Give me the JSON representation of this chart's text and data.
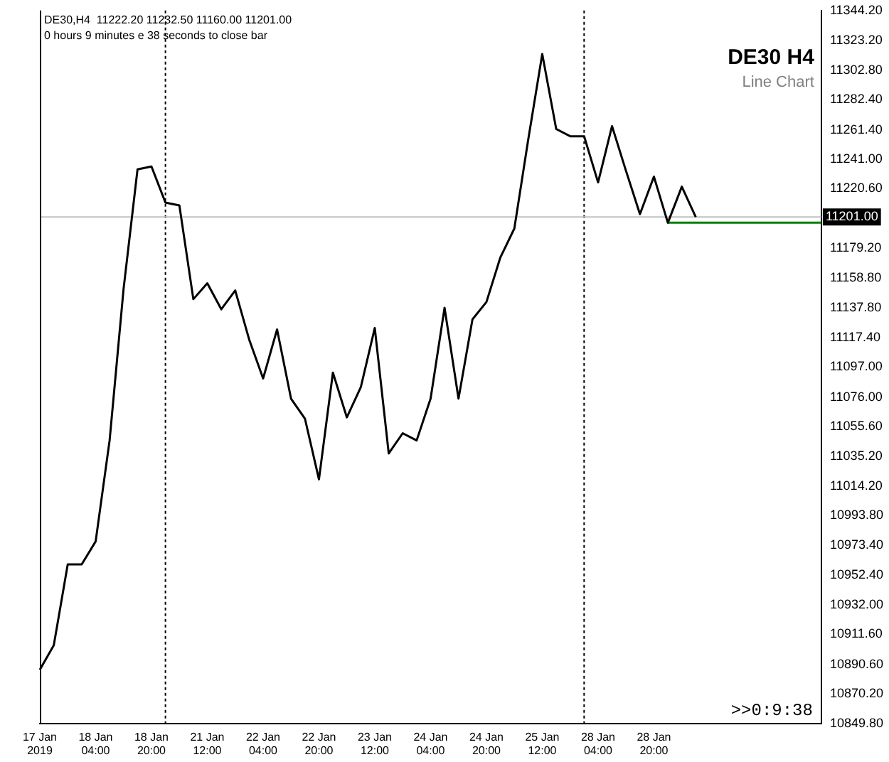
{
  "chart_data": {
    "type": "line",
    "title": "DE30 H4",
    "subtitle": "Line Chart",
    "annotations": [
      "DE30,H4  11222.20 11232.50 11160.00 11201.00",
      "0 hours 9 minutes e 38 seconds to close bar",
      ">>0:9:38"
    ],
    "categories": [
      "17 Jan 2019",
      null,
      null,
      null,
      "18 Jan 04:00",
      null,
      null,
      null,
      "18 Jan 20:00",
      null,
      null,
      null,
      "21 Jan 12:00",
      null,
      null,
      null,
      "22 Jan 04:00",
      null,
      null,
      null,
      "22 Jan 20:00",
      null,
      null,
      null,
      "23 Jan 12:00",
      null,
      null,
      null,
      "24 Jan 04:00",
      null,
      null,
      null,
      "24 Jan 20:00",
      null,
      null,
      null,
      "25 Jan 12:00",
      null,
      null,
      null,
      "28 Jan 04:00",
      null,
      null,
      null,
      "28 Jan 20:00",
      null,
      null,
      null,
      null,
      null,
      null,
      null,
      null,
      null,
      null,
      null,
      null
    ],
    "series": [
      {
        "color": "#000000",
        "values": [
          10887,
          10904,
          10960,
          10960,
          10976,
          11046,
          11151,
          11234,
          11236,
          11211,
          11209,
          11144,
          11155,
          11137,
          11150,
          11116,
          11089,
          11123,
          11075,
          11061,
          11019,
          11093,
          11062,
          11083,
          11124,
          11037,
          11051,
          11046,
          11075,
          11138,
          11075,
          11130,
          11142,
          11173,
          11193,
          11255,
          11314,
          11262,
          11257,
          11257,
          11225,
          11264,
          11233,
          11203,
          11229,
          11197,
          11222,
          11201,
          null,
          null,
          null,
          null,
          null,
          null,
          null,
          null,
          null
        ]
      },
      {
        "type": "line",
        "color": "#008000",
        "values": [
          null,
          null,
          null,
          null,
          null,
          null,
          null,
          null,
          null,
          null,
          null,
          null,
          null,
          null,
          null,
          null,
          null,
          null,
          null,
          null,
          null,
          null,
          null,
          null,
          null,
          null,
          null,
          null,
          null,
          null,
          null,
          null,
          null,
          null,
          null,
          null,
          null,
          null,
          null,
          null,
          null,
          null,
          null,
          null,
          null,
          11197,
          11197,
          11197,
          11197,
          11197,
          11197,
          11197,
          11197,
          11197,
          11197,
          11197,
          11197
        ]
      }
    ],
    "ylim": [
      10849.8,
      11344.2
    ],
    "yticks": [
      {
        "value": 10849.8,
        "label": "10849.80"
      },
      {
        "value": 10870.2,
        "label": "10870.20"
      },
      {
        "value": 10890.6,
        "label": "10890.60"
      },
      {
        "value": 10911.6,
        "label": "10911.60"
      },
      {
        "value": 10932,
        "label": "10932.00"
      },
      {
        "value": 10952.4,
        "label": "10952.40"
      },
      {
        "value": 10973.4,
        "label": "10973.40"
      },
      {
        "value": 10993.8,
        "label": "10993.80"
      },
      {
        "value": 11014.2,
        "label": "11014.20"
      },
      {
        "value": 11035.2,
        "label": "11035.20"
      },
      {
        "value": 11055.6,
        "label": "11055.60"
      },
      {
        "value": 11076,
        "label": "11076.00"
      },
      {
        "value": 11097,
        "label": "11097.00"
      },
      {
        "value": 11117.4,
        "label": "11117.40"
      },
      {
        "value": 11137.8,
        "label": "11137.80"
      },
      {
        "value": 11158.8,
        "label": "11158.80"
      },
      {
        "value": 11179.2,
        "label": "11179.20"
      },
      {
        "value": 11220.6,
        "label": "11220.60"
      },
      {
        "value": 11241,
        "label": "11241.00"
      },
      {
        "value": 11261.4,
        "label": "11261.40"
      },
      {
        "value": 11282.4,
        "label": "11282.40"
      },
      {
        "value": 11302.8,
        "label": "11302.80"
      },
      {
        "value": 11323.2,
        "label": "11323.20"
      },
      {
        "value": 11344.2,
        "label": "11344.20"
      }
    ],
    "ref_lines": [
      {
        "axis": "y",
        "value": 11201,
        "label": "11201.00",
        "color": "#c0c0c0"
      }
    ],
    "grid": false,
    "legend": false,
    "marker": "none",
    "line_style": "solid"
  }
}
